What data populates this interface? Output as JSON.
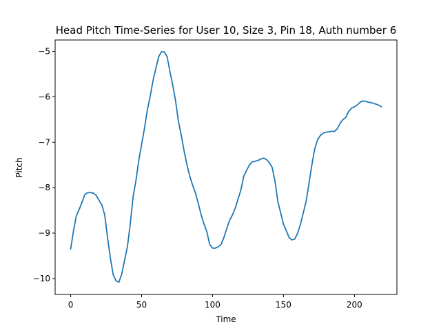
{
  "chart_data": {
    "type": "line",
    "title": "Head Pitch Time-Series for User 10, Size 3, Pin 18, Auth number 6",
    "xlabel": "Time",
    "ylabel": "Pitch",
    "xlim": [
      -10.95,
      229.95
    ],
    "ylim": [
      -10.35,
      -4.75
    ],
    "xticks": [
      0,
      50,
      100,
      150,
      200
    ],
    "yticks": [
      -10,
      -9,
      -8,
      -7,
      -6,
      -5
    ],
    "xtick_labels": [
      "0",
      "50",
      "100",
      "150",
      "200"
    ],
    "ytick_labels": [
      "−10",
      "−9",
      "−8",
      "−7",
      "−6",
      "−5"
    ],
    "grid": false,
    "series": [
      {
        "color": "#1f77b4",
        "points": [
          [
            0,
            -9.35
          ],
          [
            2,
            -8.95
          ],
          [
            4,
            -8.62
          ],
          [
            6,
            -8.48
          ],
          [
            8,
            -8.32
          ],
          [
            10,
            -8.15
          ],
          [
            12,
            -8.11
          ],
          [
            14,
            -8.11
          ],
          [
            16,
            -8.12
          ],
          [
            18,
            -8.17
          ],
          [
            20,
            -8.28
          ],
          [
            22,
            -8.38
          ],
          [
            24,
            -8.6
          ],
          [
            26,
            -9.1
          ],
          [
            28,
            -9.55
          ],
          [
            30,
            -9.92
          ],
          [
            32,
            -10.05
          ],
          [
            34,
            -10.08
          ],
          [
            36,
            -9.9
          ],
          [
            38,
            -9.6
          ],
          [
            40,
            -9.3
          ],
          [
            42,
            -8.8
          ],
          [
            44,
            -8.2
          ],
          [
            46,
            -7.85
          ],
          [
            48,
            -7.4
          ],
          [
            50,
            -7.05
          ],
          [
            52,
            -6.7
          ],
          [
            54,
            -6.3
          ],
          [
            56,
            -6.0
          ],
          [
            58,
            -5.65
          ],
          [
            60,
            -5.38
          ],
          [
            62,
            -5.12
          ],
          [
            64,
            -5.01
          ],
          [
            66,
            -5.01
          ],
          [
            68,
            -5.12
          ],
          [
            70,
            -5.45
          ],
          [
            72,
            -5.75
          ],
          [
            74,
            -6.1
          ],
          [
            76,
            -6.55
          ],
          [
            78,
            -6.85
          ],
          [
            80,
            -7.2
          ],
          [
            82,
            -7.5
          ],
          [
            84,
            -7.75
          ],
          [
            86,
            -7.95
          ],
          [
            88,
            -8.12
          ],
          [
            90,
            -8.35
          ],
          [
            92,
            -8.6
          ],
          [
            94,
            -8.8
          ],
          [
            96,
            -8.97
          ],
          [
            98,
            -9.25
          ],
          [
            100,
            -9.33
          ],
          [
            102,
            -9.33
          ],
          [
            104,
            -9.3
          ],
          [
            106,
            -9.25
          ],
          [
            108,
            -9.1
          ],
          [
            110,
            -8.9
          ],
          [
            112,
            -8.72
          ],
          [
            114,
            -8.6
          ],
          [
            116,
            -8.45
          ],
          [
            118,
            -8.25
          ],
          [
            120,
            -8.05
          ],
          [
            122,
            -7.75
          ],
          [
            124,
            -7.62
          ],
          [
            126,
            -7.5
          ],
          [
            128,
            -7.43
          ],
          [
            130,
            -7.42
          ],
          [
            132,
            -7.4
          ],
          [
            134,
            -7.37
          ],
          [
            136,
            -7.35
          ],
          [
            138,
            -7.38
          ],
          [
            140,
            -7.45
          ],
          [
            142,
            -7.55
          ],
          [
            144,
            -7.85
          ],
          [
            146,
            -8.3
          ],
          [
            148,
            -8.55
          ],
          [
            150,
            -8.8
          ],
          [
            152,
            -8.95
          ],
          [
            154,
            -9.1
          ],
          [
            156,
            -9.15
          ],
          [
            158,
            -9.13
          ],
          [
            160,
            -9.0
          ],
          [
            162,
            -8.8
          ],
          [
            164,
            -8.55
          ],
          [
            166,
            -8.3
          ],
          [
            168,
            -7.9
          ],
          [
            170,
            -7.5
          ],
          [
            172,
            -7.15
          ],
          [
            174,
            -6.95
          ],
          [
            176,
            -6.85
          ],
          [
            178,
            -6.8
          ],
          [
            180,
            -6.78
          ],
          [
            182,
            -6.77
          ],
          [
            184,
            -6.76
          ],
          [
            186,
            -6.76
          ],
          [
            188,
            -6.7
          ],
          [
            190,
            -6.58
          ],
          [
            192,
            -6.5
          ],
          [
            194,
            -6.45
          ],
          [
            196,
            -6.32
          ],
          [
            198,
            -6.25
          ],
          [
            200,
            -6.22
          ],
          [
            202,
            -6.18
          ],
          [
            204,
            -6.12
          ],
          [
            206,
            -6.09
          ],
          [
            208,
            -6.1
          ],
          [
            210,
            -6.12
          ],
          [
            212,
            -6.13
          ],
          [
            214,
            -6.15
          ],
          [
            216,
            -6.17
          ],
          [
            218,
            -6.2
          ],
          [
            219,
            -6.22
          ]
        ]
      }
    ]
  }
}
